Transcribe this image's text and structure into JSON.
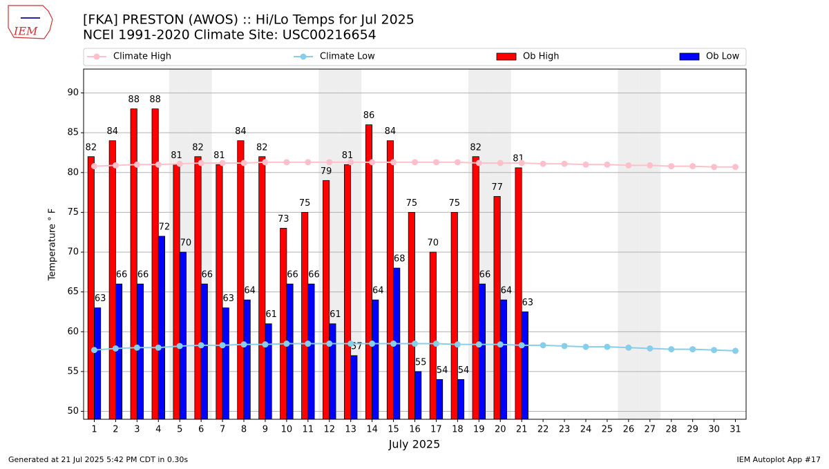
{
  "chart_data": {
    "type": "bar",
    "title": "[FKA] PRESTON (AWOS) :: Hi/Lo Temps for Jul 2025",
    "subtitle": "NCEI 1991-2020 Climate Site: USC00216654",
    "logo": "IEM",
    "x_label": "July 2025",
    "y_label": "Temperature ° F",
    "footer_left": "Generated at 21 Jul 2025 5:42 PM CDT in 0.30s",
    "footer_right": "IEM Autoplot App #17",
    "categories": [
      "1",
      "2",
      "3",
      "4",
      "5",
      "6",
      "7",
      "8",
      "9",
      "10",
      "11",
      "12",
      "13",
      "14",
      "15",
      "16",
      "17",
      "18",
      "19",
      "20",
      "21",
      "22",
      "23",
      "24",
      "25",
      "26",
      "27",
      "28",
      "29",
      "30",
      "31"
    ],
    "weekend_days": [
      5,
      6,
      12,
      13,
      19,
      20,
      26,
      27
    ],
    "series": [
      {
        "name": "Climate High",
        "kind": "line",
        "color": "#ffc0cb",
        "values": [
          80.8,
          80.9,
          81.0,
          81.0,
          81.1,
          81.2,
          81.2,
          81.2,
          81.3,
          81.3,
          81.3,
          81.3,
          81.3,
          81.3,
          81.3,
          81.3,
          81.3,
          81.3,
          81.2,
          81.2,
          81.2,
          81.1,
          81.1,
          81.0,
          81.0,
          80.9,
          80.9,
          80.8,
          80.8,
          80.7,
          80.7
        ]
      },
      {
        "name": "Climate Low",
        "kind": "line",
        "color": "#87ceeb",
        "values": [
          57.7,
          57.9,
          58.0,
          58.0,
          58.2,
          58.3,
          58.3,
          58.4,
          58.4,
          58.5,
          58.5,
          58.5,
          58.5,
          58.5,
          58.5,
          58.5,
          58.5,
          58.4,
          58.4,
          58.4,
          58.3,
          58.3,
          58.2,
          58.1,
          58.1,
          58.0,
          57.9,
          57.8,
          57.8,
          57.7,
          57.6
        ]
      },
      {
        "name": "Ob High",
        "kind": "bar",
        "color": "#ff0000",
        "values": [
          82,
          84,
          88,
          88,
          81,
          82,
          81,
          84,
          82,
          73,
          75,
          79,
          81,
          86,
          84,
          75,
          70,
          75,
          82,
          77,
          80.6,
          null,
          null,
          null,
          null,
          null,
          null,
          null,
          null,
          null,
          null
        ],
        "value_labels": [
          "82",
          "84",
          "88",
          "88",
          "81",
          "82",
          "81",
          "84",
          "82",
          "73",
          "75",
          "79",
          "81",
          "86",
          "84",
          "75",
          "70",
          "75",
          "82",
          "77",
          "81",
          null,
          null,
          null,
          null,
          null,
          null,
          null,
          null,
          null,
          null
        ]
      },
      {
        "name": "Ob Low",
        "kind": "bar",
        "color": "#0000ff",
        "values": [
          63,
          66,
          66,
          72,
          70,
          66,
          63,
          64,
          61,
          66,
          66,
          61,
          57,
          64,
          68,
          55,
          54,
          54,
          66,
          64,
          62.5,
          null,
          null,
          null,
          null,
          null,
          null,
          null,
          null,
          null,
          null
        ],
        "value_labels": [
          "63",
          "66",
          "66",
          "72",
          "70",
          "66",
          "63",
          "64",
          "61",
          "66",
          "66",
          "61",
          "57",
          "64",
          "68",
          "55",
          "54",
          "54",
          "66",
          "64",
          "63",
          null,
          null,
          null,
          null,
          null,
          null,
          null,
          null,
          null,
          null
        ]
      }
    ],
    "ylim": [
      49,
      93
    ],
    "yticks": [
      50,
      55,
      60,
      65,
      70,
      75,
      80,
      85,
      90
    ],
    "grid": true
  }
}
